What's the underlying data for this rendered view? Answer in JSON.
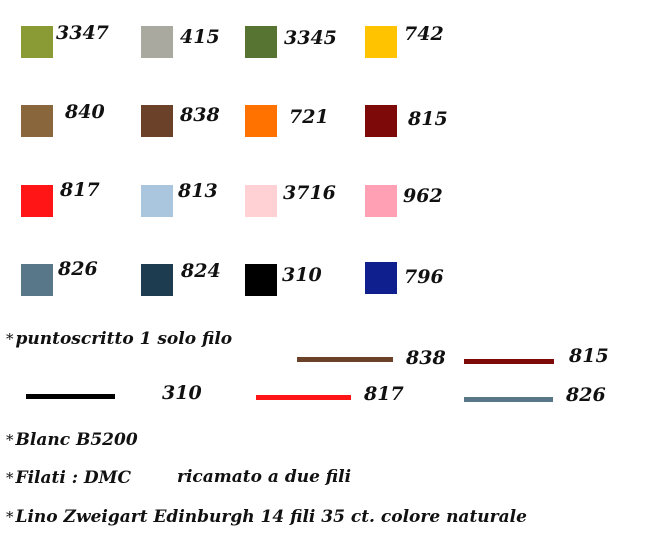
{
  "swatches": [
    {
      "code": "3347",
      "color": "#8a9a35"
    },
    {
      "code": "415",
      "color": "#a9a9a0"
    },
    {
      "code": "3345",
      "color": "#577433"
    },
    {
      "code": "742",
      "color": "#ffc300"
    },
    {
      "code": "840",
      "color": "#89663c"
    },
    {
      "code": "838",
      "color": "#6c4129"
    },
    {
      "code": "721",
      "color": "#ff7200"
    },
    {
      "code": "815",
      "color": "#7d0a08"
    },
    {
      "code": "817",
      "color": "#ff1515"
    },
    {
      "code": "813",
      "color": "#a9c6de"
    },
    {
      "code": "3716",
      "color": "#ffd0d4"
    },
    {
      "code": "962",
      "color": "#ffa0b4"
    },
    {
      "code": "826",
      "color": "#587788"
    },
    {
      "code": "824",
      "color": "#1e3c50"
    },
    {
      "code": "310",
      "color": "#000000"
    },
    {
      "code": "796",
      "color": "#0f1f8e"
    }
  ],
  "star": "*",
  "backstitch": {
    "label": "puntoscritto   1 solo filo",
    "lines": [
      {
        "code": "838",
        "color": "#6c4129"
      },
      {
        "code": "815",
        "color": "#7d0a08"
      },
      {
        "code": "310",
        "color": "#000000"
      },
      {
        "code": "817",
        "color": "#ff1515"
      },
      {
        "code": "826",
        "color": "#587788"
      }
    ]
  },
  "notes": {
    "blanc": "Blanc B5200",
    "filati": "Filati : DMC",
    "ricamato": "ricamato a due fili",
    "lino": "Lino Zweigart  Edinburgh  14 fili 35 ct. colore  naturale"
  }
}
